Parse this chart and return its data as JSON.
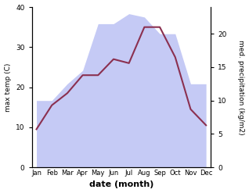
{
  "months": [
    "Jan",
    "Feb",
    "Mar",
    "Apr",
    "May",
    "Jun",
    "Jul",
    "Aug",
    "Sep",
    "Oct",
    "Nov",
    "Dec"
  ],
  "month_x": [
    0,
    1,
    2,
    3,
    4,
    5,
    6,
    7,
    8,
    9,
    10,
    11
  ],
  "temperature": [
    9.5,
    15.5,
    18.5,
    23.0,
    23.0,
    27.0,
    26.0,
    35.0,
    35.0,
    27.5,
    14.5,
    10.5
  ],
  "precipitation": [
    10.0,
    10.0,
    12.5,
    14.5,
    21.5,
    21.5,
    23.0,
    22.5,
    20.0,
    20.0,
    12.5,
    12.5
  ],
  "temp_color": "#8b3050",
  "precip_fill_color": "#c5caf5",
  "temp_ylim": [
    0,
    40
  ],
  "precip_ylim": [
    0,
    24
  ],
  "ylabel_left": "max temp (C)",
  "ylabel_right": "med. precipitation (kg/m2)",
  "xlabel": "date (month)",
  "temp_yticks": [
    0,
    10,
    20,
    30,
    40
  ],
  "precip_yticks": [
    0,
    5,
    10,
    15,
    20
  ],
  "background_color": "#ffffff"
}
